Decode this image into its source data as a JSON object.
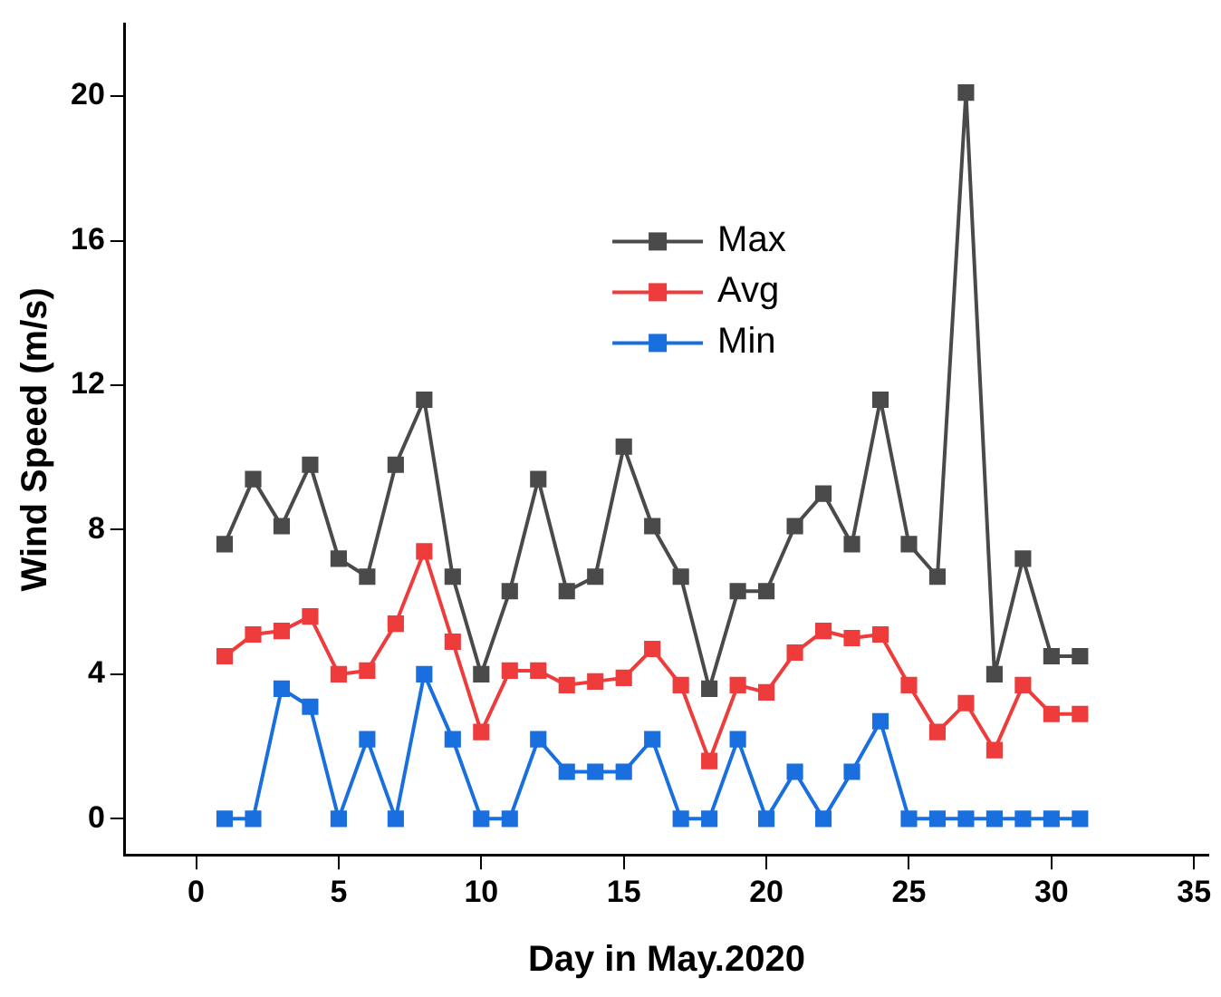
{
  "chart_data": {
    "type": "line",
    "xlabel": "Day in May.2020",
    "ylabel": "Wind Speed (m/s)",
    "x": [
      1,
      2,
      3,
      4,
      5,
      6,
      7,
      8,
      9,
      10,
      11,
      12,
      13,
      14,
      15,
      16,
      17,
      18,
      19,
      20,
      21,
      22,
      23,
      24,
      25,
      26,
      27,
      28,
      29,
      30,
      31
    ],
    "series": [
      {
        "name": "Max",
        "color": "#4a4a4a",
        "values": [
          7.6,
          9.4,
          8.1,
          9.8,
          7.2,
          6.7,
          9.8,
          11.6,
          6.7,
          4.0,
          6.3,
          9.4,
          6.3,
          6.7,
          10.3,
          8.1,
          6.7,
          3.6,
          6.3,
          6.3,
          8.1,
          9.0,
          7.6,
          11.6,
          7.6,
          6.7,
          20.1,
          4.0,
          7.2,
          4.5,
          4.5
        ]
      },
      {
        "name": "Avg",
        "color": "#ee3b3b",
        "values": [
          4.5,
          5.1,
          5.2,
          5.6,
          4.0,
          4.1,
          5.4,
          7.4,
          4.9,
          2.4,
          4.1,
          4.1,
          3.7,
          3.8,
          3.9,
          4.7,
          3.7,
          1.6,
          3.7,
          3.5,
          4.6,
          5.2,
          5.0,
          5.1,
          3.7,
          2.4,
          3.2,
          1.9,
          3.7,
          2.9,
          2.9
        ]
      },
      {
        "name": "Min",
        "color": "#1a6fdf",
        "values": [
          0,
          0,
          3.6,
          3.1,
          0,
          2.2,
          0,
          4.0,
          2.2,
          0,
          0,
          2.2,
          1.3,
          1.3,
          1.3,
          2.2,
          0,
          0,
          2.2,
          0,
          1.3,
          0,
          1.3,
          2.7,
          0,
          0,
          0,
          0,
          0,
          0,
          0
        ]
      }
    ],
    "xlim": [
      -2.5,
      35.5
    ],
    "xticks": [
      0,
      5,
      10,
      15,
      20,
      25,
      30,
      35
    ],
    "ylim": [
      -1,
      22
    ],
    "yticks": [
      0,
      4,
      8,
      12,
      16,
      20
    ],
    "grid": false,
    "legend": "top",
    "marker": "square",
    "line_style": "solid"
  }
}
